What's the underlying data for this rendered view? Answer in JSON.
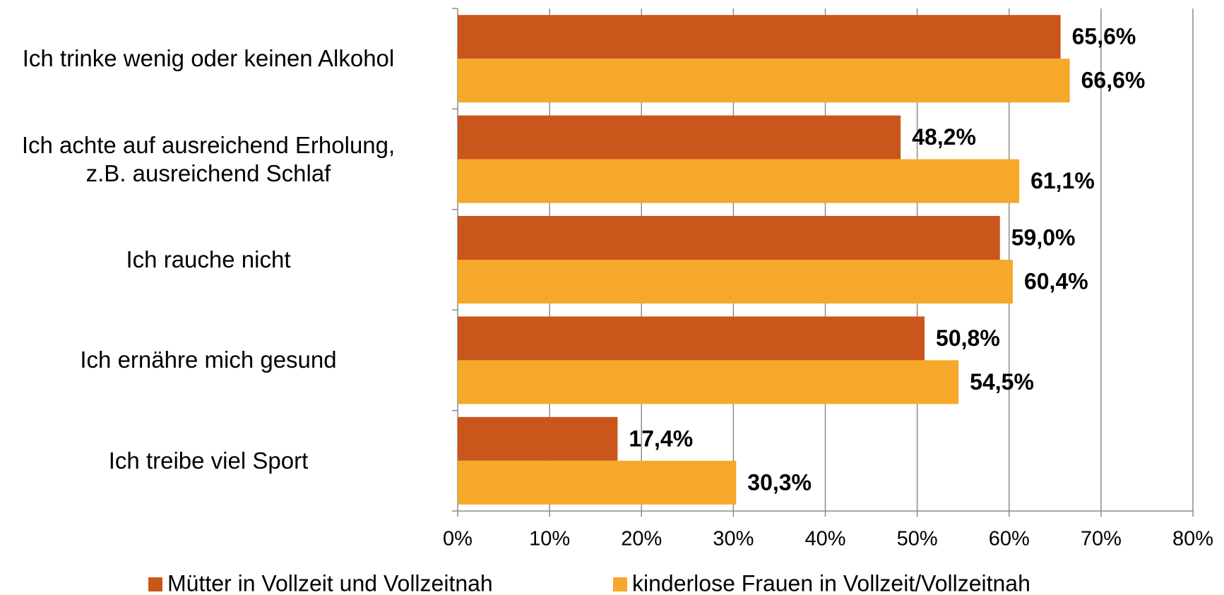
{
  "chart_data": {
    "type": "bar",
    "orientation": "horizontal",
    "categories": [
      "Ich trinke wenig oder keinen Alkohol",
      "Ich achte auf ausreichend Erholung,\nz.B. ausreichend Schlaf",
      "Ich rauche nicht",
      "Ich ernähre mich gesund",
      "Ich treibe viel Sport"
    ],
    "series": [
      {
        "name": "Mütter in Vollzeit und Vollzeitnah",
        "color": "#c9561a",
        "values": [
          65.6,
          48.2,
          59.0,
          50.8,
          17.4
        ],
        "value_labels": [
          "65,6%",
          "48,2%",
          "59,0%",
          "50,8%",
          "17,4%"
        ]
      },
      {
        "name": "kinderlose Frauen in Vollzeit/Vollzeitnah",
        "color": "#f5a82a",
        "values": [
          66.6,
          61.1,
          60.4,
          54.5,
          30.3
        ],
        "value_labels": [
          "66,6%",
          "61,1%",
          "60,4%",
          "54,5%",
          "30,3%"
        ]
      }
    ],
    "xlim": [
      0,
      80
    ],
    "xticks": [
      {
        "value": 0,
        "label": "0%"
      },
      {
        "value": 10,
        "label": "10%"
      },
      {
        "value": 20,
        "label": "20%"
      },
      {
        "value": 30,
        "label": "30%"
      },
      {
        "value": 40,
        "label": "40%"
      },
      {
        "value": 50,
        "label": "50%"
      },
      {
        "value": 60,
        "label": "60%"
      },
      {
        "value": 70,
        "label": "70%"
      },
      {
        "value": 80,
        "label": "80%"
      }
    ],
    "grid": true,
    "legend": "bottom"
  }
}
